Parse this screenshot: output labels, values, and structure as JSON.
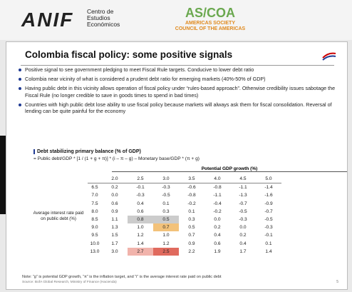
{
  "header": {
    "anif_logo": "ANIF",
    "anif_text": "Centro de Estudios Económicos",
    "ascoa_as": "AS/",
    "ascoa_coa": "COA",
    "ascoa_line1": "AMERICAS SOCIETY",
    "ascoa_line2": "COUNCIL OF THE AMERICAS"
  },
  "slide": {
    "title": "Colombia fiscal policy: some positive signals",
    "bullets": [
      "Positive signal to see government pledging to meet Fiscal Rule targets. Conducive to lower debt ratio",
      "Colombia near vicinity of what is considered a prudent debt ratio for emerging markets (40%-50% of GDP)",
      "Having public debt in this vicinity allows operation of fiscal policy under “rules-based approach”. Otherwise credibility issues sabotage the Fiscal Rule (no longer credible to save in goods times to spend in bad times)",
      "Countries with high public debt lose ability to use fiscal policy because markets will always ask them for fiscal consolidation. Reversal of lending can be quite painful for the economy"
    ],
    "table_title": "Debt stabilizing primary balance (% of GDP)",
    "formula": "= Public debt/GDP * [1 / (1 + g + π)] * (i – π – g) – Monetary base/GDP * (π + g)",
    "column_header": "Potential GDP growth (%)",
    "row_header": "Average interest rate paid on public debt (%)",
    "table": {
      "columns": [
        "2.0",
        "2.5",
        "3.0",
        "3.5",
        "4.0",
        "4.5",
        "5.0"
      ],
      "rows": [
        [
          "6.5",
          "0.2",
          "-0.1",
          "-0.3",
          "-0.6",
          "-0.8",
          "-1.1",
          "-1.4"
        ],
        [
          "7.0",
          "0.0",
          "-0.3",
          "-0.5",
          "-0.8",
          "-1.1",
          "-1.3",
          "-1.6"
        ],
        [
          "7.5",
          "0.6",
          "0.4",
          "0.1",
          "-0.2",
          "-0.4",
          "-0.7",
          "-0.9"
        ],
        [
          "8.0",
          "0.9",
          "0.6",
          "0.3",
          "0.1",
          "-0.2",
          "-0.5",
          "-0.7"
        ],
        [
          "8.5",
          "1.1",
          "0.8",
          "0.5",
          "0.3",
          "0.0",
          "-0.3",
          "-0.5"
        ],
        [
          "9.0",
          "1.3",
          "1.0",
          "0.7",
          "0.5",
          "0.2",
          "0.0",
          "-0.3"
        ],
        [
          "9.5",
          "1.5",
          "1.2",
          "1.0",
          "0.7",
          "0.4",
          "0.2",
          "-0.1"
        ],
        [
          "10.0",
          "1.7",
          "1.4",
          "1.2",
          "0.9",
          "0.6",
          "0.4",
          "0.1"
        ],
        [
          "13.0",
          "3.0",
          "2.7",
          "2.5",
          "2.2",
          "1.9",
          "1.7",
          "1.4"
        ]
      ]
    },
    "note": "Note: “g” is potential GDP growth, “π” is the inflation target, and “i” is the average interest rate paid on public debt",
    "source": "Source: BofA Global Research, Ministry of Finance (Hacienda)",
    "page_number": "5"
  }
}
